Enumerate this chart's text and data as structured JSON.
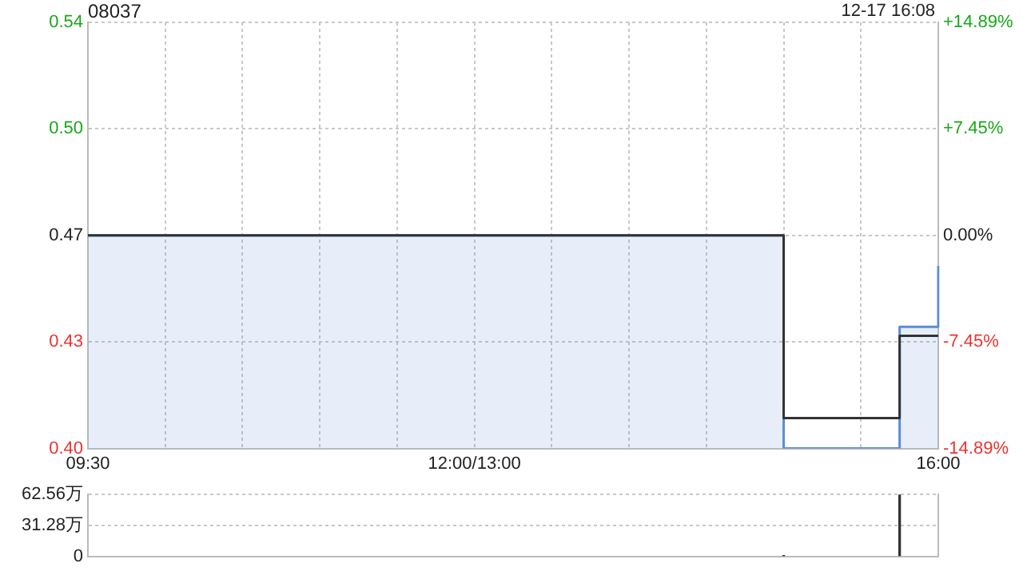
{
  "chart_data": [
    {
      "type": "step",
      "title": "08037",
      "annotations": [
        "12-17 16:08"
      ],
      "categories": [
        "09:30",
        null,
        null,
        null,
        null,
        null,
        null,
        null,
        null,
        null,
        null,
        null,
        null,
        null,
        null,
        null,
        null,
        null,
        null,
        null,
        null,
        null,
        null,
        null,
        null,
        null,
        null,
        null,
        null,
        null,
        "12:00/13:00",
        null,
        null,
        null,
        null,
        null,
        null,
        null,
        null,
        null,
        null,
        null,
        null,
        null,
        null,
        null,
        null,
        null,
        null,
        null,
        null,
        null,
        null,
        null,
        null,
        null,
        null,
        null,
        null,
        null,
        null,
        null,
        null,
        null,
        null,
        null,
        "16:00"
      ],
      "ylim": [
        0.4,
        0.54
      ],
      "yticks": [
        {
          "value": 0.4,
          "label": "0.40"
        },
        {
          "value": 0.435,
          "label": "0.43"
        },
        0.47,
        {
          "value": 0.505,
          "label": "0.50"
        },
        0.54
      ],
      "y2lim": [
        -14.89,
        14.89
      ],
      "y2ticks": [
        {
          "value": -14.89,
          "label": "-14.89%"
        },
        {
          "value": -7.45,
          "label": "-7.45%"
        },
        {
          "value": 0,
          "label": "0.00%"
        },
        {
          "value": 7.45,
          "label": "+7.45%"
        },
        {
          "value": 14.89,
          "label": "+14.89%"
        }
      ],
      "grid": true,
      "series": [
        {
          "type": "area",
          "color": "#5b8bd8",
          "values": [
            0.47,
            0.47,
            0.47,
            0.47,
            0.47,
            0.47,
            0.47,
            0.47,
            0.47,
            0.47,
            0.47,
            0.47,
            0.47,
            0.47,
            0.47,
            0.47,
            0.47,
            0.47,
            0.47,
            0.47,
            0.47,
            0.47,
            0.47,
            0.47,
            0.47,
            0.47,
            0.47,
            0.47,
            0.47,
            0.47,
            0.47,
            0.47,
            0.47,
            0.47,
            0.47,
            0.47,
            0.47,
            0.47,
            0.47,
            0.47,
            0.47,
            0.47,
            0.47,
            0.47,
            0.47,
            0.47,
            0.47,
            0.47,
            0.47,
            0.47,
            0.47,
            0.47,
            0.47,
            0.47,
            0.4,
            0.4,
            0.4,
            0.4,
            0.4,
            0.4,
            0.4,
            0.4,
            0.4,
            0.44,
            0.44,
            0.44,
            0.46
          ]
        },
        {
          "type": "step",
          "color": "#333333",
          "values": [
            0.47,
            0.47,
            0.47,
            0.47,
            0.47,
            0.47,
            0.47,
            0.47,
            0.47,
            0.47,
            0.47,
            0.47,
            0.47,
            0.47,
            0.47,
            0.47,
            0.47,
            0.47,
            0.47,
            0.47,
            0.47,
            0.47,
            0.47,
            0.47,
            0.47,
            0.47,
            0.47,
            0.47,
            0.47,
            0.47,
            0.47,
            0.47,
            0.47,
            0.47,
            0.47,
            0.47,
            0.47,
            0.47,
            0.47,
            0.47,
            0.47,
            0.47,
            0.47,
            0.47,
            0.47,
            0.47,
            0.47,
            0.47,
            0.47,
            0.47,
            0.47,
            0.47,
            0.47,
            0.47,
            0.41,
            0.41,
            0.41,
            0.41,
            0.41,
            0.41,
            0.41,
            0.41,
            0.41,
            0.437,
            0.437,
            0.437,
            0.437
          ]
        }
      ]
    },
    {
      "type": "bar",
      "categories": [
        null,
        null,
        null,
        null,
        null,
        null,
        null,
        null,
        null,
        null,
        null,
        null,
        null,
        null,
        null,
        null,
        null,
        null,
        null,
        null,
        null,
        null,
        null,
        null,
        null,
        null,
        null,
        null,
        null,
        null,
        null,
        null,
        null,
        null,
        null,
        null,
        null,
        null,
        null,
        null,
        null,
        null,
        null,
        null,
        null,
        null,
        null,
        null,
        null,
        null,
        null,
        null,
        null,
        null,
        null,
        null,
        null,
        null,
        null,
        null,
        null,
        null,
        null,
        null,
        null,
        null,
        null
      ],
      "ylim": [
        0,
        62.56
      ],
      "yticks": [
        0,
        {
          "value": 31.28,
          "label": "31.28万"
        },
        {
          "value": 62.56,
          "label": "62.56万"
        }
      ],
      "grid": "y",
      "tick_labels": "y",
      "series": [
        {
          "color": "#333333",
          "values": [
            null,
            null,
            null,
            null,
            null,
            null,
            null,
            null,
            null,
            null,
            null,
            null,
            null,
            null,
            null,
            null,
            null,
            null,
            null,
            null,
            null,
            null,
            null,
            null,
            null,
            null,
            null,
            null,
            null,
            null,
            null,
            null,
            null,
            null,
            null,
            null,
            null,
            null,
            null,
            null,
            null,
            null,
            null,
            null,
            null,
            null,
            null,
            null,
            null,
            null,
            null,
            null,
            null,
            null,
            1,
            null,
            null,
            null,
            null,
            null,
            null,
            null,
            null,
            62.56,
            null,
            null,
            null
          ]
        }
      ]
    }
  ]
}
